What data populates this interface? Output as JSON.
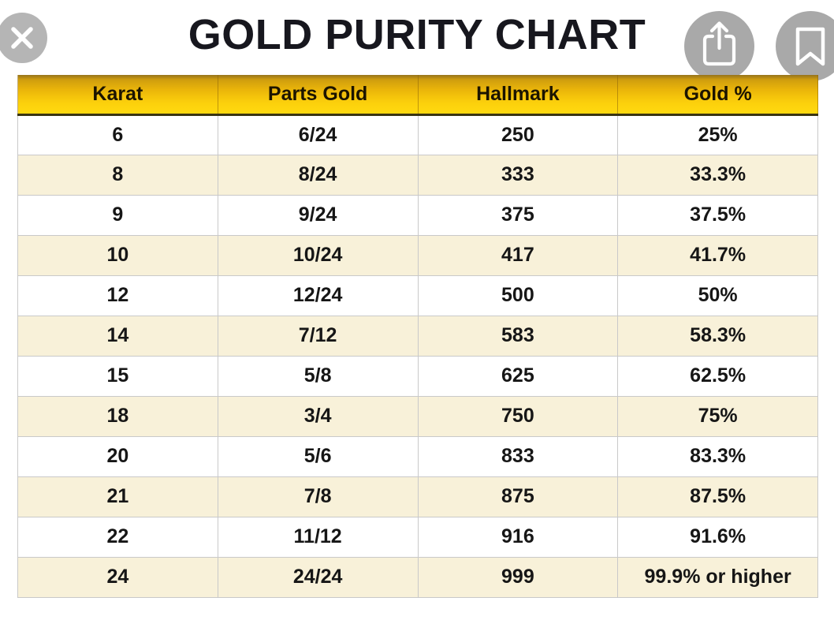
{
  "header": {
    "title": "GOLD PURITY CHART"
  },
  "buttons": {
    "close": "close",
    "share": "share",
    "bookmark": "bookmark"
  },
  "colors": {
    "header_gold_top": "#96741c",
    "header_gold_bottom": "#ffd90f",
    "header_bottom_border": "#3a3512",
    "row_cream": "#f8f1d9",
    "row_white": "#ffffff",
    "cell_border_gray": "#c9c9c9",
    "button_gray": "#a9a9a9",
    "title_black": "#17171e"
  },
  "chart_data": {
    "type": "table",
    "title": "GOLD PURITY CHART",
    "columns": [
      "Karat",
      "Parts Gold",
      "Hallmark",
      "Gold %"
    ],
    "rows": [
      [
        "6",
        "6/24",
        "250",
        "25%"
      ],
      [
        "8",
        "8/24",
        "333",
        "33.3%"
      ],
      [
        "9",
        "9/24",
        "375",
        "37.5%"
      ],
      [
        "10",
        "10/24",
        "417",
        "41.7%"
      ],
      [
        "12",
        "12/24",
        "500",
        "50%"
      ],
      [
        "14",
        "7/12",
        "583",
        "58.3%"
      ],
      [
        "15",
        "5/8",
        "625",
        "62.5%"
      ],
      [
        "18",
        "3/4",
        "750",
        "75%"
      ],
      [
        "20",
        "5/6",
        "833",
        "83.3%"
      ],
      [
        "21",
        "7/8",
        "875",
        "87.5%"
      ],
      [
        "22",
        "11/12",
        "916",
        "91.6%"
      ],
      [
        "24",
        "24/24",
        "999",
        "99.9% or higher"
      ]
    ]
  }
}
